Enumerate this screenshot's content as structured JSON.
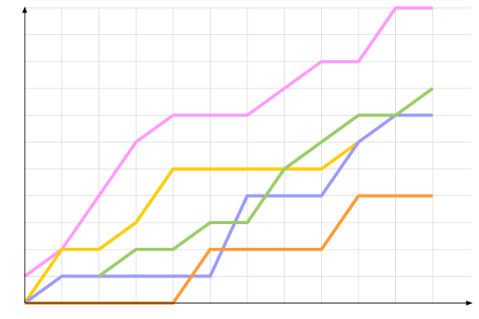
{
  "chart_data": {
    "type": "line",
    "title": "",
    "xlabel": "",
    "ylabel": "",
    "xlim": [
      0,
      11
    ],
    "ylim": [
      0,
      11
    ],
    "grid": true,
    "legend": "none",
    "x": [
      0,
      1,
      2,
      3,
      4,
      5,
      6,
      7,
      8,
      9,
      10,
      11
    ],
    "series": [
      {
        "color": "#ff99ff",
        "values": [
          1,
          2,
          4,
          6,
          7,
          7,
          7,
          8,
          9,
          9,
          11,
          11
        ]
      },
      {
        "color": "#ffcc00",
        "values": [
          0,
          2,
          2,
          3,
          5,
          5,
          5,
          5,
          5,
          6,
          null,
          null
        ]
      },
      {
        "color": "#9999ff",
        "values": [
          0,
          1,
          1,
          1,
          1,
          1,
          4,
          4,
          4,
          6,
          7,
          7
        ]
      },
      {
        "color": "#99cc66",
        "values": [
          null,
          null,
          1,
          2,
          2,
          3,
          3,
          5,
          6,
          7,
          7,
          8
        ]
      },
      {
        "color": "#ff9933",
        "values": [
          0,
          0,
          0,
          0,
          0,
          2,
          2,
          2,
          2,
          4,
          4,
          4
        ]
      }
    ]
  }
}
